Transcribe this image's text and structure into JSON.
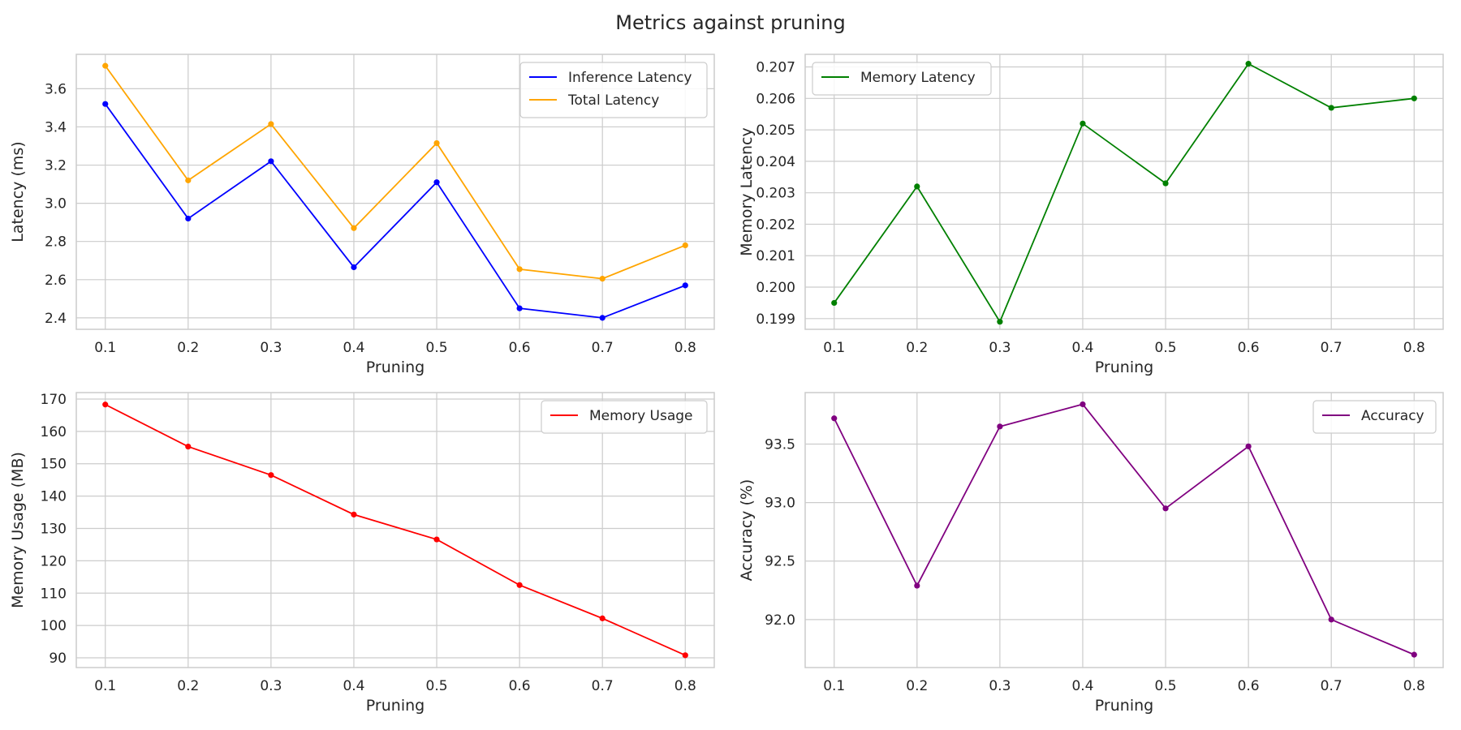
{
  "figure": {
    "title": "Metrics against pruning"
  },
  "chart_data": [
    {
      "type": "line",
      "x": [
        0.1,
        0.2,
        0.3,
        0.4,
        0.5,
        0.6,
        0.7,
        0.8
      ],
      "xlabel": "Pruning",
      "ylabel": "Latency (ms)",
      "xticks": [
        "0.1",
        "0.2",
        "0.3",
        "0.4",
        "0.5",
        "0.6",
        "0.7",
        "0.8"
      ],
      "yticks": [
        "2.4",
        "2.6",
        "2.8",
        "3.0",
        "3.2",
        "3.4",
        "3.6"
      ],
      "ylim": [
        2.34,
        3.78
      ],
      "grid": true,
      "legend": "top-right",
      "series": [
        {
          "name": "Inference Latency",
          "color": "#0000ff",
          "values": [
            3.52,
            2.92,
            3.22,
            2.665,
            3.11,
            2.45,
            2.4,
            2.57
          ]
        },
        {
          "name": "Total Latency",
          "color": "#ffa500",
          "values": [
            3.72,
            3.12,
            3.415,
            2.87,
            3.315,
            2.655,
            2.605,
            2.78
          ]
        }
      ]
    },
    {
      "type": "line",
      "x": [
        0.1,
        0.2,
        0.3,
        0.4,
        0.5,
        0.6,
        0.7,
        0.8
      ],
      "xlabel": "Pruning",
      "ylabel": "Memory Latency",
      "xticks": [
        "0.1",
        "0.2",
        "0.3",
        "0.4",
        "0.5",
        "0.6",
        "0.7",
        "0.8"
      ],
      "yticks": [
        "0.199",
        "0.200",
        "0.201",
        "0.202",
        "0.203",
        "0.204",
        "0.205",
        "0.206",
        "0.207"
      ],
      "ylim": [
        0.19866,
        0.2074
      ],
      "grid": true,
      "legend": "top-left",
      "series": [
        {
          "name": "Memory Latency",
          "color": "#008000",
          "values": [
            0.1995,
            0.2032,
            0.1989,
            0.2052,
            0.2033,
            0.2071,
            0.2057,
            0.206
          ]
        }
      ]
    },
    {
      "type": "line",
      "x": [
        0.1,
        0.2,
        0.3,
        0.4,
        0.5,
        0.6,
        0.7,
        0.8
      ],
      "xlabel": "Pruning",
      "ylabel": "Memory Usage (MB)",
      "xticks": [
        "0.1",
        "0.2",
        "0.3",
        "0.4",
        "0.5",
        "0.6",
        "0.7",
        "0.8"
      ],
      "yticks": [
        "90",
        "100",
        "110",
        "120",
        "130",
        "140",
        "150",
        "160",
        "170"
      ],
      "ylim": [
        87,
        172
      ],
      "grid": true,
      "legend": "top-right",
      "series": [
        {
          "name": "Memory Usage",
          "color": "#ff0000",
          "values": [
            168.3,
            155.3,
            146.5,
            134.3,
            126.6,
            112.5,
            102.2,
            90.8
          ]
        }
      ]
    },
    {
      "type": "line",
      "x": [
        0.1,
        0.2,
        0.3,
        0.4,
        0.5,
        0.6,
        0.7,
        0.8
      ],
      "xlabel": "Pruning",
      "ylabel": "Accuracy (%)",
      "xticks": [
        "0.1",
        "0.2",
        "0.3",
        "0.4",
        "0.5",
        "0.6",
        "0.7",
        "0.8"
      ],
      "yticks": [
        "92.0",
        "92.5",
        "93.0",
        "93.5"
      ],
      "ylim": [
        91.59,
        93.94
      ],
      "grid": true,
      "legend": "top-right",
      "series": [
        {
          "name": "Accuracy",
          "color": "#800080",
          "values": [
            93.72,
            92.29,
            93.65,
            93.84,
            92.95,
            93.48,
            92.0,
            91.7
          ]
        }
      ]
    }
  ]
}
